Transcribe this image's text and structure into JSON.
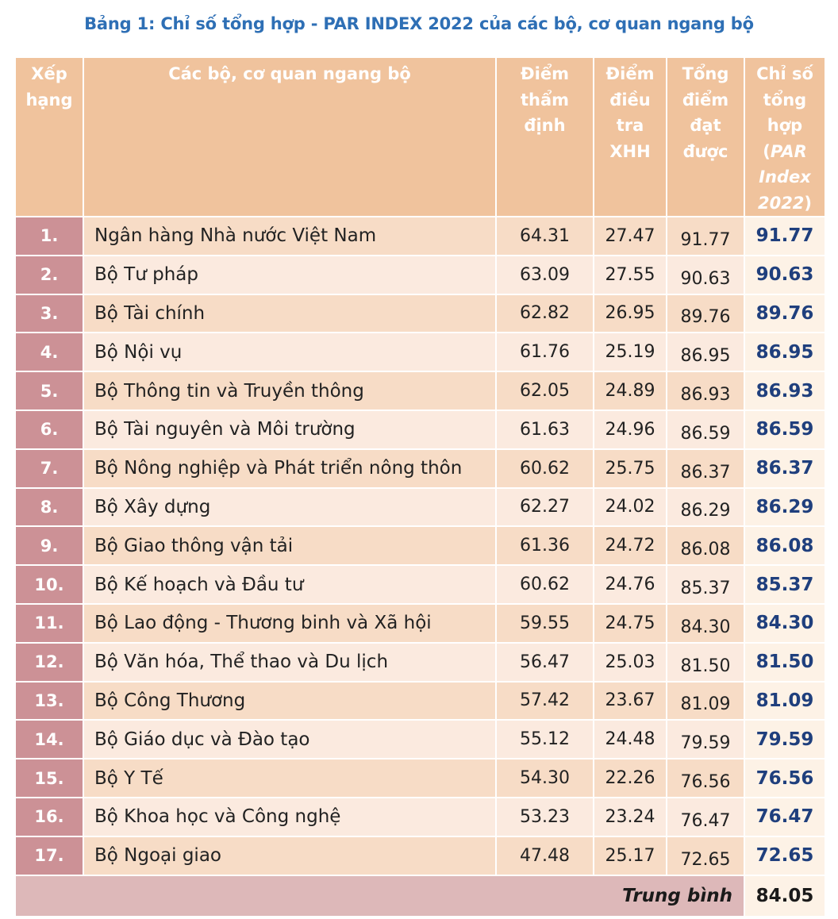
{
  "title": "Bảng 1: Chỉ số tổng hợp  - PAR INDEX 2022 của các bộ, cơ quan ngang bộ",
  "headers": {
    "rank": [
      "Xếp",
      "hạng"
    ],
    "name": "Các bộ, cơ quan ngang bộ",
    "appraisal": [
      "Điểm",
      "thẩm",
      "định"
    ],
    "survey": [
      "Điểm",
      "điều",
      "tra",
      "XHH"
    ],
    "total": [
      "Tổng",
      "điểm",
      "đạt",
      "được"
    ],
    "index": [
      "Chỉ số",
      "tổng",
      "hợp",
      "(",
      "PAR",
      "Index",
      "2022",
      ")"
    ]
  },
  "rows": [
    {
      "rank": "1.",
      "name": "Ngân hàng Nhà nước Việt Nam",
      "appraisal": "64.31",
      "survey": "27.47",
      "total": "91.77",
      "index": "91.77"
    },
    {
      "rank": "2.",
      "name": "Bộ Tư pháp",
      "appraisal": "63.09",
      "survey": "27.55",
      "total": "90.63",
      "index": "90.63"
    },
    {
      "rank": "3.",
      "name": "Bộ Tài chính",
      "appraisal": "62.82",
      "survey": "26.95",
      "total": "89.76",
      "index": "89.76"
    },
    {
      "rank": "4.",
      "name": "Bộ Nội vụ",
      "appraisal": "61.76",
      "survey": "25.19",
      "total": "86.95",
      "index": "86.95"
    },
    {
      "rank": "5.",
      "name": "Bộ Thông tin và Truyền thông",
      "appraisal": "62.05",
      "survey": "24.89",
      "total": "86.93",
      "index": "86.93"
    },
    {
      "rank": "6.",
      "name": "Bộ Tài nguyên và Môi trường",
      "appraisal": "61.63",
      "survey": "24.96",
      "total": "86.59",
      "index": "86.59"
    },
    {
      "rank": "7.",
      "name": "Bộ Nông nghiệp và Phát triển nông thôn",
      "appraisal": "60.62",
      "survey": "25.75",
      "total": "86.37",
      "index": "86.37"
    },
    {
      "rank": "8.",
      "name": "Bộ Xây dựng",
      "appraisal": "62.27",
      "survey": "24.02",
      "total": "86.29",
      "index": "86.29"
    },
    {
      "rank": "9.",
      "name": "Bộ Giao thông vận tải",
      "appraisal": "61.36",
      "survey": "24.72",
      "total": "86.08",
      "index": "86.08"
    },
    {
      "rank": "10.",
      "name": "Bộ Kế hoạch và Đầu tư",
      "appraisal": "60.62",
      "survey": "24.76",
      "total": "85.37",
      "index": "85.37"
    },
    {
      "rank": "11.",
      "name": "Bộ Lao động - Thương binh và Xã hội",
      "appraisal": "59.55",
      "survey": "24.75",
      "total": "84.30",
      "index": "84.30"
    },
    {
      "rank": "12.",
      "name": "Bộ Văn hóa, Thể thao và Du lịch",
      "appraisal": "56.47",
      "survey": "25.03",
      "total": "81.50",
      "index": "81.50"
    },
    {
      "rank": "13.",
      "name": "Bộ Công Thương",
      "appraisal": "57.42",
      "survey": "23.67",
      "total": "81.09",
      "index": "81.09"
    },
    {
      "rank": "14.",
      "name": "Bộ Giáo dục và Đào tạo",
      "appraisal": "55.12",
      "survey": "24.48",
      "total": "79.59",
      "index": "79.59"
    },
    {
      "rank": "15.",
      "name": "Bộ Y Tế",
      "appraisal": "54.30",
      "survey": "22.26",
      "total": "76.56",
      "index": "76.56"
    },
    {
      "rank": "16.",
      "name": "Bộ Khoa học và Công nghệ",
      "appraisal": "53.23",
      "survey": "23.24",
      "total": "76.47",
      "index": "76.47"
    },
    {
      "rank": "17.",
      "name": "Bộ Ngoại giao",
      "appraisal": "47.48",
      "survey": "25.17",
      "total": "72.65",
      "index": "72.65"
    }
  ],
  "average": {
    "label": "Trung bình",
    "value": "84.05"
  }
}
